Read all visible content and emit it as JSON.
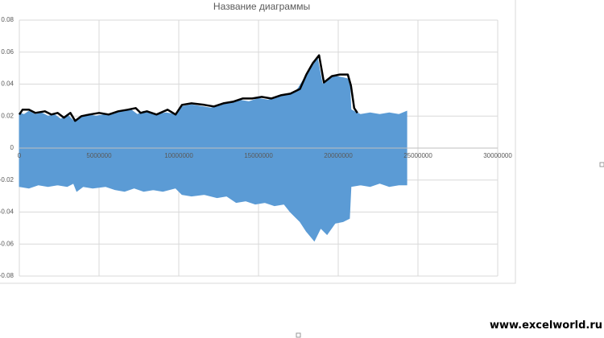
{
  "chart_data": {
    "type": "area",
    "title": "Название диаграммы",
    "xlim": [
      0,
      30000000
    ],
    "xticks": [
      0,
      5000000,
      10000000,
      15000000,
      20000000,
      25000000,
      30000000
    ],
    "ylim": [
      -0.08,
      0.08
    ],
    "yticks": [
      -0.08,
      -0.06,
      -0.04,
      -0.02,
      0,
      0.02,
      0.04,
      0.06,
      0.08
    ],
    "grid": true,
    "series": [
      {
        "color": "#5b9bd5",
        "x": [
          0,
          300000,
          600000,
          1000000,
          1400000,
          1800000,
          2200000,
          2600000,
          3000000,
          3400000,
          3800000,
          4200000,
          4800000,
          5400000,
          6000000,
          6600000,
          7000000,
          7400000,
          7800000,
          8200000,
          8600000,
          9200000,
          9800000,
          10200000,
          10800000,
          11400000,
          12000000,
          12600000,
          13200000,
          13800000,
          14400000,
          15000000,
          15600000,
          16200000,
          16800000,
          17400000,
          17900000,
          18300000,
          18700000,
          19000000,
          19400000,
          19800000,
          20300000,
          20700000,
          20800000,
          21400000,
          22000000,
          22600000,
          23200000,
          23800000,
          24300000
        ],
        "values": [
          0.022,
          0.021,
          0.023,
          0.021,
          0.022,
          0.02,
          0.021,
          0.018,
          0.021,
          0.017,
          0.019,
          0.021,
          0.02,
          0.021,
          0.022,
          0.023,
          0.024,
          0.021,
          0.023,
          0.022,
          0.021,
          0.022,
          0.021,
          0.026,
          0.027,
          0.026,
          0.025,
          0.027,
          0.028,
          0.03,
          0.029,
          0.031,
          0.03,
          0.032,
          0.033,
          0.036,
          0.044,
          0.05,
          0.056,
          0.04,
          0.043,
          0.045,
          0.044,
          0.043,
          0.024,
          0.021,
          0.022,
          0.021,
          0.022,
          0.021,
          0.023
        ]
      },
      {
        "color": "#5b9bd5",
        "x": [
          0,
          600000,
          1200000,
          1800000,
          2400000,
          3000000,
          3400000,
          3600000,
          4000000,
          4600000,
          5400000,
          6000000,
          6600000,
          7200000,
          7800000,
          8400000,
          9000000,
          9800000,
          10200000,
          10800000,
          11600000,
          12400000,
          13000000,
          13600000,
          14200000,
          14800000,
          15400000,
          16000000,
          16600000,
          17000000,
          17600000,
          18000000,
          18500000,
          18900000,
          19300000,
          19800000,
          20300000,
          20700000,
          20800000,
          21400000,
          22000000,
          22600000,
          23200000,
          23800000,
          24300000
        ],
        "values": [
          -0.024,
          -0.025,
          -0.023,
          -0.024,
          -0.023,
          -0.024,
          -0.022,
          -0.027,
          -0.024,
          -0.025,
          -0.024,
          -0.026,
          -0.027,
          -0.025,
          -0.027,
          -0.026,
          -0.027,
          -0.025,
          -0.029,
          -0.03,
          -0.029,
          -0.031,
          -0.03,
          -0.034,
          -0.033,
          -0.035,
          -0.034,
          -0.036,
          -0.035,
          -0.04,
          -0.046,
          -0.052,
          -0.058,
          -0.05,
          -0.054,
          -0.047,
          -0.046,
          -0.044,
          -0.024,
          -0.023,
          -0.024,
          -0.022,
          -0.024,
          -0.023,
          -0.023
        ]
      },
      {
        "color": "#000000",
        "x": [
          0,
          200000,
          600000,
          1000000,
          1600000,
          2000000,
          2400000,
          2800000,
          3200000,
          3500000,
          3900000,
          4400000,
          5000000,
          5600000,
          6200000,
          6800000,
          7300000,
          7600000,
          8000000,
          8600000,
          9300000,
          9800000,
          10200000,
          10800000,
          11600000,
          12200000,
          12800000,
          13400000,
          14000000,
          14600000,
          15200000,
          15800000,
          16400000,
          17000000,
          17600000,
          18000000,
          18400000,
          18800000,
          19100000,
          19600000,
          20100000,
          20600000,
          20800000,
          21000000,
          21200000
        ],
        "values": [
          0.021,
          0.024,
          0.024,
          0.022,
          0.023,
          0.021,
          0.022,
          0.019,
          0.022,
          0.017,
          0.02,
          0.021,
          0.022,
          0.021,
          0.023,
          0.024,
          0.025,
          0.022,
          0.023,
          0.021,
          0.024,
          0.021,
          0.027,
          0.028,
          0.027,
          0.026,
          0.028,
          0.029,
          0.031,
          0.031,
          0.032,
          0.031,
          0.033,
          0.034,
          0.037,
          0.046,
          0.053,
          0.058,
          0.041,
          0.045,
          0.046,
          0.046,
          0.039,
          0.025,
          0.022
        ]
      }
    ]
  },
  "watermark": "www.excelworld.ru"
}
